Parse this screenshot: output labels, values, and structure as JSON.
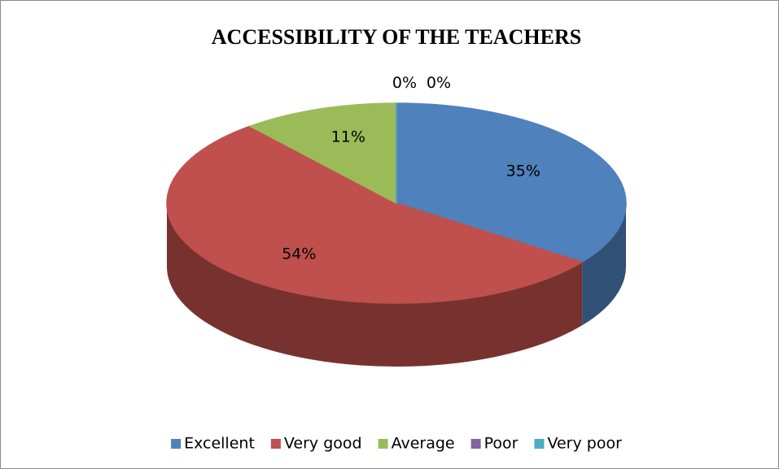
{
  "chart_data": {
    "type": "pie3d",
    "title": "ACCESSIBILITY OF THE TEACHERS",
    "categories": [
      "Excellent",
      "Very good",
      "Average",
      "Poor",
      "Very poor"
    ],
    "values": [
      35,
      54,
      11,
      0,
      0
    ],
    "value_labels": [
      "35%",
      "54%",
      "11%",
      "0%",
      "0%"
    ],
    "colors": [
      "#4f81bd",
      "#c0504d",
      "#9bbb59",
      "#8064a2",
      "#4bacc6"
    ],
    "legend": "bottom"
  }
}
